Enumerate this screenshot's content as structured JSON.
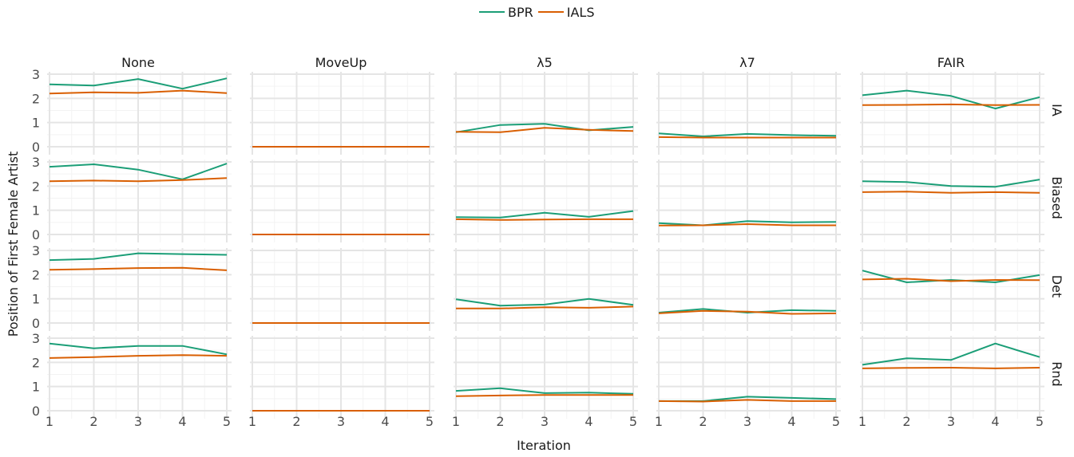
{
  "legend": {
    "items": [
      "BPR",
      "IALS"
    ]
  },
  "colors": {
    "BPR": "#1b9e77",
    "IALS": "#d95f02",
    "grid_major": "#e5e5e5",
    "grid_minor": "#f3f3f3",
    "text": "#4d4d4d"
  },
  "chart_data": {
    "type": "line",
    "xlabel": "Iteration",
    "ylabel": "Position of First Female Artist",
    "x": [
      1,
      2,
      3,
      4,
      5
    ],
    "xticks": [
      "1",
      "2",
      "3",
      "4",
      "5"
    ],
    "yticks": [
      "0",
      "1",
      "2",
      "3"
    ],
    "ylim": [
      0,
      3
    ],
    "columns": [
      "None",
      "MoveUp",
      "λ5",
      "λ7",
      "FAIR"
    ],
    "rows": [
      "IA",
      "Biased",
      "Det",
      "Rnd"
    ],
    "grid": true,
    "legend_position": "top",
    "panels": [
      {
        "row": "IA",
        "col": "None",
        "series": [
          {
            "name": "BPR",
            "values": [
              2.58,
              2.53,
              2.8,
              2.4,
              2.83
            ]
          },
          {
            "name": "IALS",
            "values": [
              2.2,
              2.25,
              2.23,
              2.32,
              2.22
            ]
          }
        ]
      },
      {
        "row": "IA",
        "col": "MoveUp",
        "series": [
          {
            "name": "BPR",
            "values": [
              0,
              0,
              0,
              0,
              0
            ]
          },
          {
            "name": "IALS",
            "values": [
              0,
              0,
              0,
              0,
              0
            ]
          }
        ]
      },
      {
        "row": "IA",
        "col": "λ5",
        "series": [
          {
            "name": "BPR",
            "values": [
              0.6,
              0.9,
              0.95,
              0.68,
              0.82
            ]
          },
          {
            "name": "IALS",
            "values": [
              0.62,
              0.6,
              0.78,
              0.7,
              0.65
            ]
          }
        ]
      },
      {
        "row": "IA",
        "col": "λ7",
        "series": [
          {
            "name": "BPR",
            "values": [
              0.55,
              0.43,
              0.53,
              0.48,
              0.45
            ]
          },
          {
            "name": "IALS",
            "values": [
              0.4,
              0.38,
              0.38,
              0.38,
              0.38
            ]
          }
        ]
      },
      {
        "row": "IA",
        "col": "FAIR",
        "series": [
          {
            "name": "BPR",
            "values": [
              2.13,
              2.32,
              2.1,
              1.58,
              2.05
            ]
          },
          {
            "name": "IALS",
            "values": [
              1.72,
              1.73,
              1.75,
              1.72,
              1.73
            ]
          }
        ]
      },
      {
        "row": "Biased",
        "col": "None",
        "series": [
          {
            "name": "BPR",
            "values": [
              2.8,
              2.9,
              2.68,
              2.28,
              2.93
            ]
          },
          {
            "name": "IALS",
            "values": [
              2.2,
              2.23,
              2.2,
              2.25,
              2.33
            ]
          }
        ]
      },
      {
        "row": "Biased",
        "col": "MoveUp",
        "series": [
          {
            "name": "BPR",
            "values": [
              0,
              0,
              0,
              0,
              0
            ]
          },
          {
            "name": "IALS",
            "values": [
              0,
              0,
              0,
              0,
              0
            ]
          }
        ]
      },
      {
        "row": "Biased",
        "col": "λ5",
        "series": [
          {
            "name": "BPR",
            "values": [
              0.72,
              0.7,
              0.9,
              0.73,
              0.97
            ]
          },
          {
            "name": "IALS",
            "values": [
              0.63,
              0.6,
              0.62,
              0.63,
              0.63
            ]
          }
        ]
      },
      {
        "row": "Biased",
        "col": "λ7",
        "series": [
          {
            "name": "BPR",
            "values": [
              0.47,
              0.38,
              0.55,
              0.5,
              0.52
            ]
          },
          {
            "name": "IALS",
            "values": [
              0.37,
              0.38,
              0.43,
              0.38,
              0.38
            ]
          }
        ]
      },
      {
        "row": "Biased",
        "col": "FAIR",
        "series": [
          {
            "name": "BPR",
            "values": [
              2.2,
              2.17,
              2.0,
              1.97,
              2.27
            ]
          },
          {
            "name": "IALS",
            "values": [
              1.75,
              1.77,
              1.72,
              1.75,
              1.72
            ]
          }
        ]
      },
      {
        "row": "Det",
        "col": "None",
        "series": [
          {
            "name": "BPR",
            "values": [
              2.6,
              2.65,
              2.88,
              2.85,
              2.82
            ]
          },
          {
            "name": "IALS",
            "values": [
              2.2,
              2.23,
              2.27,
              2.28,
              2.18
            ]
          }
        ]
      },
      {
        "row": "Det",
        "col": "MoveUp",
        "series": [
          {
            "name": "BPR",
            "values": [
              0,
              0,
              0,
              0,
              0
            ]
          },
          {
            "name": "IALS",
            "values": [
              0,
              0,
              0,
              0,
              0
            ]
          }
        ]
      },
      {
        "row": "Det",
        "col": "λ5",
        "series": [
          {
            "name": "BPR",
            "values": [
              0.98,
              0.72,
              0.76,
              1.0,
              0.75
            ]
          },
          {
            "name": "IALS",
            "values": [
              0.6,
              0.6,
              0.65,
              0.63,
              0.68
            ]
          }
        ]
      },
      {
        "row": "Det",
        "col": "λ7",
        "series": [
          {
            "name": "BPR",
            "values": [
              0.43,
              0.58,
              0.43,
              0.53,
              0.5
            ]
          },
          {
            "name": "IALS",
            "values": [
              0.4,
              0.5,
              0.47,
              0.38,
              0.4
            ]
          }
        ]
      },
      {
        "row": "Det",
        "col": "FAIR",
        "series": [
          {
            "name": "BPR",
            "values": [
              2.17,
              1.68,
              1.78,
              1.68,
              1.98
            ]
          },
          {
            "name": "IALS",
            "values": [
              1.8,
              1.83,
              1.73,
              1.78,
              1.77
            ]
          }
        ]
      },
      {
        "row": "Rnd",
        "col": "None",
        "series": [
          {
            "name": "BPR",
            "values": [
              2.78,
              2.58,
              2.68,
              2.68,
              2.33
            ]
          },
          {
            "name": "IALS",
            "values": [
              2.18,
              2.22,
              2.27,
              2.3,
              2.27
            ]
          }
        ]
      },
      {
        "row": "Rnd",
        "col": "MoveUp",
        "series": [
          {
            "name": "BPR",
            "values": [
              0,
              0,
              0,
              0,
              0
            ]
          },
          {
            "name": "IALS",
            "values": [
              0,
              0,
              0,
              0,
              0
            ]
          }
        ]
      },
      {
        "row": "Rnd",
        "col": "λ5",
        "series": [
          {
            "name": "BPR",
            "values": [
              0.82,
              0.93,
              0.73,
              0.75,
              0.7
            ]
          },
          {
            "name": "IALS",
            "values": [
              0.6,
              0.63,
              0.65,
              0.65,
              0.65
            ]
          }
        ]
      },
      {
        "row": "Rnd",
        "col": "λ7",
        "series": [
          {
            "name": "BPR",
            "values": [
              0.4,
              0.4,
              0.58,
              0.53,
              0.48
            ]
          },
          {
            "name": "IALS",
            "values": [
              0.4,
              0.38,
              0.45,
              0.4,
              0.4
            ]
          }
        ]
      },
      {
        "row": "Rnd",
        "col": "FAIR",
        "series": [
          {
            "name": "BPR",
            "values": [
              1.9,
              2.17,
              2.1,
              2.78,
              2.22
            ]
          },
          {
            "name": "IALS",
            "values": [
              1.75,
              1.77,
              1.78,
              1.75,
              1.78
            ]
          }
        ]
      }
    ]
  }
}
